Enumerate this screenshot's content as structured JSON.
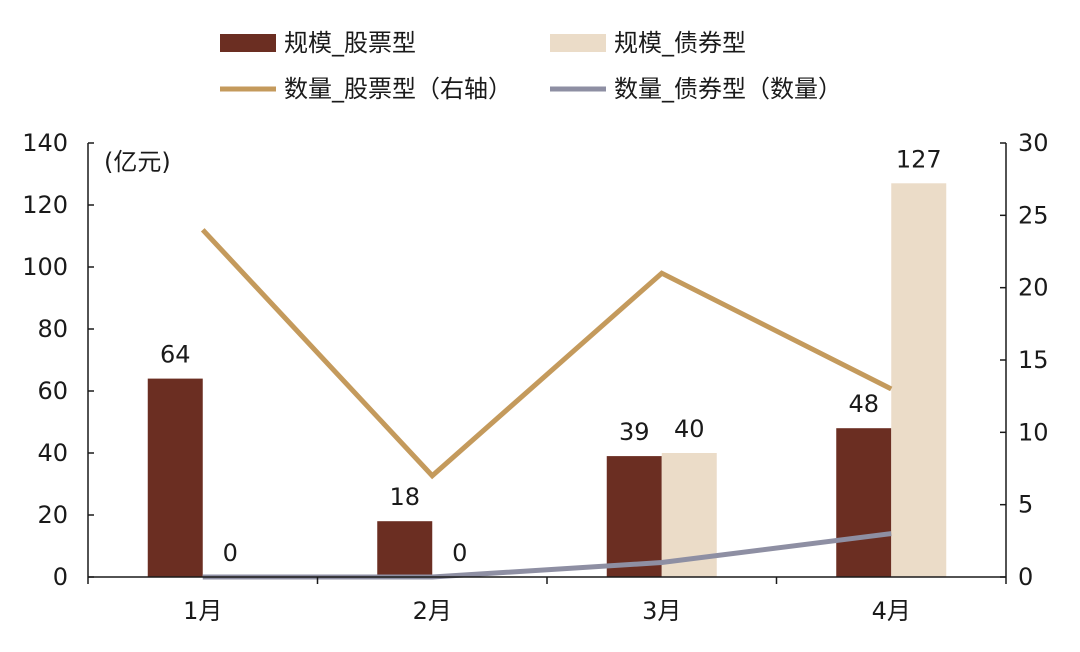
{
  "chart_data": {
    "type": "bar",
    "categories": [
      "1月",
      "2月",
      "3月",
      "4月"
    ],
    "unit_label": "(亿元)",
    "left_axis": {
      "ylim": [
        0,
        140
      ],
      "ticks": [
        0,
        20,
        40,
        60,
        80,
        100,
        120,
        140
      ]
    },
    "right_axis": {
      "ylim": [
        0,
        30
      ],
      "ticks": [
        0,
        5,
        10,
        15,
        20,
        25,
        30
      ]
    },
    "bar_series": [
      {
        "name": "规模_股票型",
        "color": "#6b2e22",
        "values": [
          64,
          18,
          39,
          48
        ],
        "labels": [
          "64",
          "18",
          "39",
          "48"
        ]
      },
      {
        "name": "规模_债券型",
        "color": "#ebdcc8",
        "values": [
          0,
          0,
          40,
          127
        ],
        "labels": [
          "0",
          "0",
          "40",
          "127"
        ]
      }
    ],
    "line_series": [
      {
        "name": "数量_股票型（右轴）",
        "color": "#c49a5c",
        "axis": "right",
        "values": [
          24,
          7,
          21,
          13
        ]
      },
      {
        "name": "数量_债券型（数量）",
        "color": "#8e8fa3",
        "axis": "right",
        "values": [
          0,
          0,
          1,
          3
        ]
      }
    ],
    "legend_position": "top"
  }
}
